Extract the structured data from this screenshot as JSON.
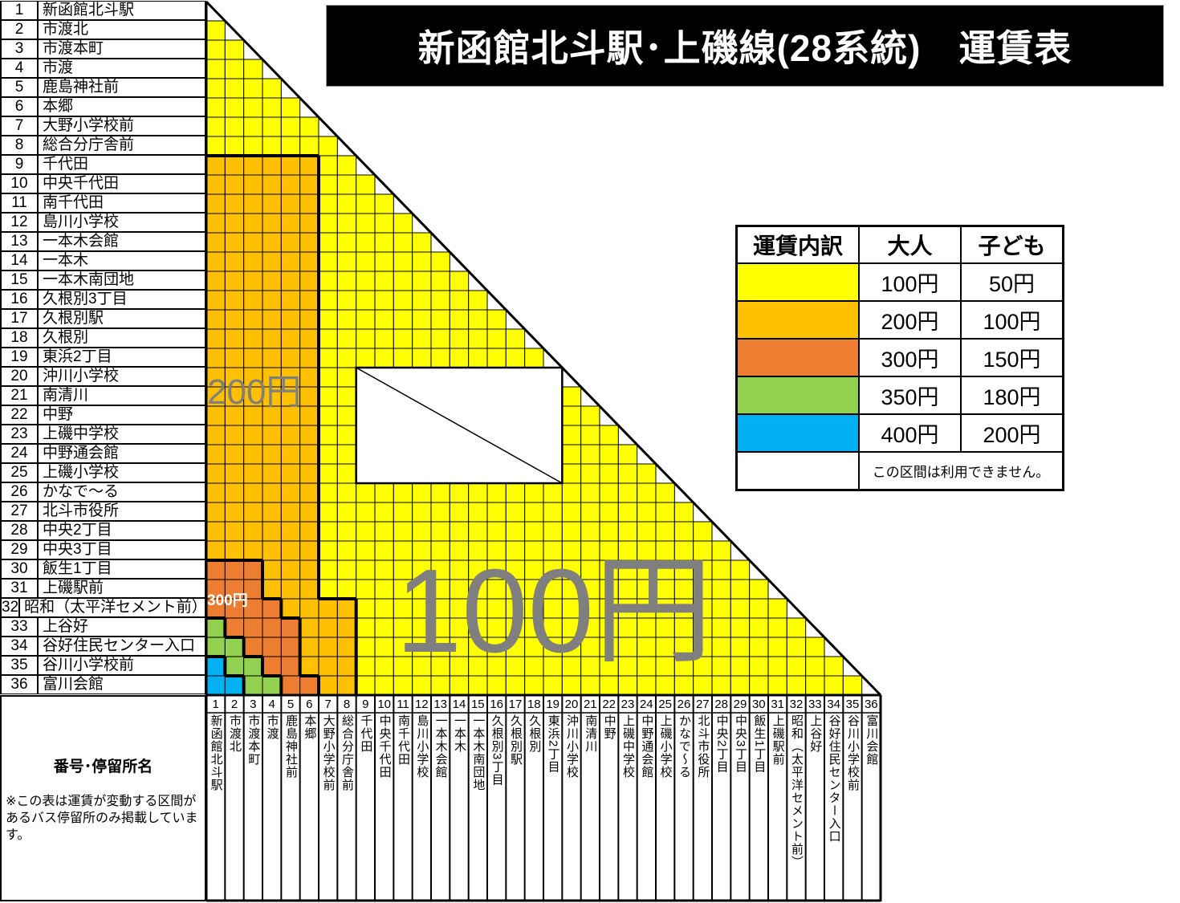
{
  "title": "新函館北斗駅･上磯線(28系統)　運賃表",
  "stops": [
    "新函館北斗駅",
    "市渡北",
    "市渡本町",
    "市渡",
    "鹿島神社前",
    "本郷",
    "大野小学校前",
    "総合分庁舎前",
    "千代田",
    "中央千代田",
    "南千代田",
    "島川小学校",
    "一本木会館",
    "一本木",
    "一本木南団地",
    "久根別3丁目",
    "久根別駅",
    "久根別",
    "東浜2丁目",
    "沖川小学校",
    "南清川",
    "中野",
    "上磯中学校",
    "中野通会館",
    "上磯小学校",
    "かなで～る",
    "北斗市役所",
    "中央2丁目",
    "中央3丁目",
    "飯生1丁目",
    "上磯駅前",
    "昭和（太平洋セメント前）",
    "上谷好",
    "谷好住民センター入口",
    "谷川小学校前",
    "富川会館"
  ],
  "bottom_left": {
    "heading": "番号･停留所名",
    "note": "※この表は運賃が変動する区間があるバス停留所のみ掲載しています。"
  },
  "fare_colors": {
    "100": "#FFFF00",
    "200": "#FFC000",
    "300": "#ED7D31",
    "350": "#92D050",
    "400": "#00B0F0",
    "unavailable": "#FFFFFF"
  },
  "fare_zones": [
    {
      "fare": "200",
      "rows": [
        9,
        36
      ],
      "cols": [
        1,
        6
      ]
    },
    {
      "fare": "200",
      "rows": [
        32,
        36
      ],
      "cols": [
        7,
        8
      ]
    },
    {
      "fare": "300",
      "rows": [
        30,
        31
      ],
      "cols": [
        1,
        3
      ]
    },
    {
      "fare": "300",
      "rows": [
        32,
        32
      ],
      "cols": [
        1,
        4
      ]
    },
    {
      "fare": "300",
      "rows": [
        33,
        35
      ],
      "cols": [
        1,
        5
      ]
    },
    {
      "fare": "300",
      "rows": [
        36,
        36
      ],
      "cols": [
        1,
        6
      ]
    },
    {
      "fare": "350",
      "rows": [
        33,
        33
      ],
      "cols": [
        1,
        1
      ]
    },
    {
      "fare": "350",
      "rows": [
        34,
        34
      ],
      "cols": [
        1,
        2
      ]
    },
    {
      "fare": "350",
      "rows": [
        35,
        35
      ],
      "cols": [
        1,
        3
      ]
    },
    {
      "fare": "350",
      "rows": [
        36,
        36
      ],
      "cols": [
        1,
        4
      ]
    },
    {
      "fare": "400",
      "rows": [
        35,
        35
      ],
      "cols": [
        1,
        1
      ]
    },
    {
      "fare": "400",
      "rows": [
        36,
        36
      ],
      "cols": [
        1,
        2
      ]
    },
    {
      "fare": "unavailable",
      "rows": [
        20,
        25
      ],
      "cols": [
        9,
        19
      ]
    }
  ],
  "default_fare": "100",
  "area_labels": {
    "fare_100": "100円",
    "fare_200": "200円",
    "fare_300": "300円"
  },
  "legend": {
    "headers": [
      "運賃内訳",
      "大人",
      "子ども"
    ],
    "rows": [
      {
        "color": "#FFFF00",
        "adult": "100円",
        "child": "50円"
      },
      {
        "color": "#FFC000",
        "adult": "200円",
        "child": "100円"
      },
      {
        "color": "#ED7D31",
        "adult": "300円",
        "child": "150円"
      },
      {
        "color": "#92D050",
        "adult": "350円",
        "child": "180円"
      },
      {
        "color": "#00B0F0",
        "adult": "400円",
        "child": "200円"
      }
    ],
    "unavailable_color": "#FFFFFF",
    "unavailable_text": "この区間は利用できません。"
  }
}
